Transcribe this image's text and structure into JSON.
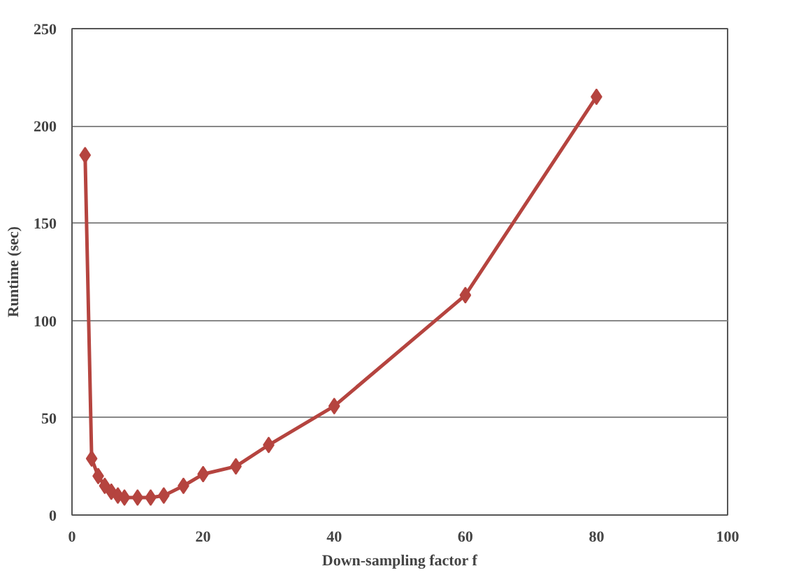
{
  "chart_data": {
    "type": "line",
    "xlabel": "Down-sampling factor f",
    "ylabel": "Runtime (sec)",
    "x": [
      2,
      3,
      4,
      5,
      6,
      7,
      8,
      10,
      12,
      14,
      17,
      20,
      25,
      30,
      40,
      60,
      80
    ],
    "series": [
      {
        "color": "#b5443f",
        "values": [
          185,
          29,
          20,
          15,
          12,
          10,
          9,
          9,
          9,
          10,
          15,
          21,
          25,
          36,
          56,
          113,
          215
        ]
      }
    ],
    "xlim": [
      0,
      100
    ],
    "xticks": [
      0,
      20,
      40,
      60,
      80,
      100
    ],
    "ylim": [
      0,
      250
    ],
    "yticks": [
      0,
      50,
      100,
      150,
      200,
      250
    ],
    "grid": "y",
    "marker": "diamond",
    "line_style": "solid"
  }
}
